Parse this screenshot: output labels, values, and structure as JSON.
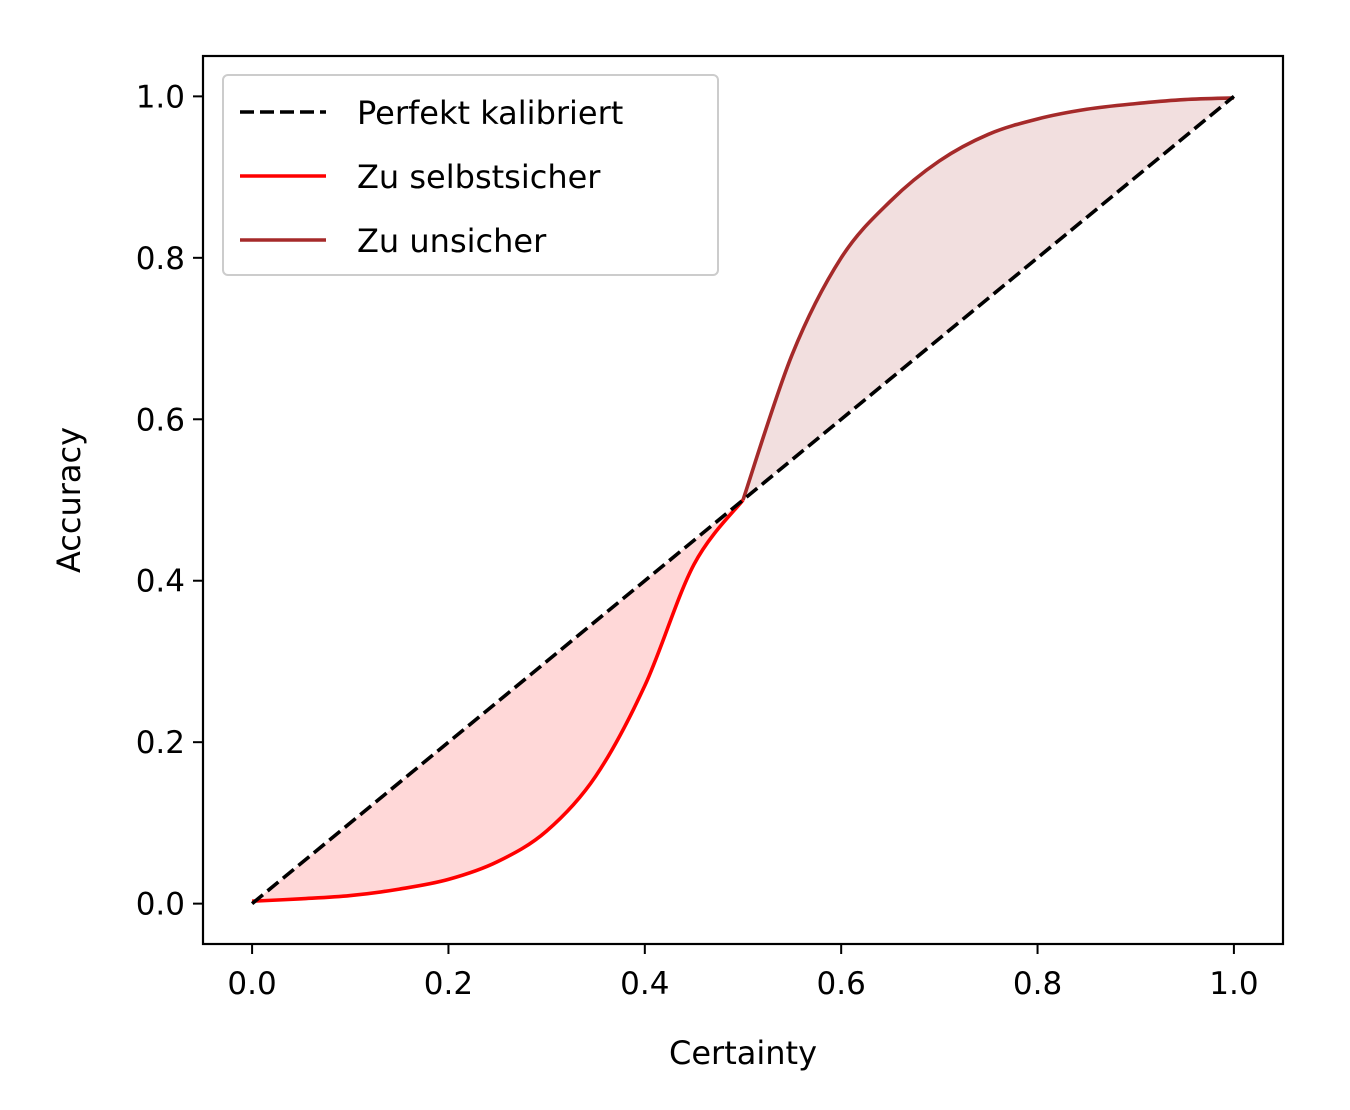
{
  "chart_data": {
    "type": "line",
    "title": "",
    "xlabel": "Certainty",
    "ylabel": "Accuracy",
    "xlim": [
      -0.05,
      1.05
    ],
    "ylim": [
      -0.05,
      1.05
    ],
    "xticks": [
      "0.0",
      "0.2",
      "0.4",
      "0.6",
      "0.8",
      "1.0"
    ],
    "yticks": [
      "0.0",
      "0.2",
      "0.4",
      "0.6",
      "0.8",
      "1.0"
    ],
    "grid": false,
    "legend_position": "top-left",
    "series": [
      {
        "name": "Perfekt kalibriert",
        "style": "dashed",
        "color": "#000000",
        "x": [
          0.0,
          1.0
        ],
        "y": [
          0.0,
          1.0
        ]
      },
      {
        "name": "Zu selbstsicher",
        "style": "solid",
        "color": "#ff0000",
        "fill_color": "#ffd8d8",
        "x": [
          0.0,
          0.05,
          0.1,
          0.15,
          0.2,
          0.25,
          0.3,
          0.35,
          0.4,
          0.45,
          0.5
        ],
        "y": [
          0.003,
          0.006,
          0.01,
          0.018,
          0.03,
          0.052,
          0.09,
          0.158,
          0.27,
          0.42,
          0.5
        ]
      },
      {
        "name": "Zu unsicher",
        "style": "solid",
        "color": "#a52a2a",
        "fill_color": "#f2dfdf",
        "x": [
          0.5,
          0.55,
          0.6,
          0.65,
          0.7,
          0.75,
          0.8,
          0.85,
          0.9,
          0.95,
          1.0
        ],
        "y": [
          0.5,
          0.68,
          0.8,
          0.87,
          0.92,
          0.953,
          0.972,
          0.984,
          0.991,
          0.996,
          0.998
        ]
      }
    ]
  }
}
